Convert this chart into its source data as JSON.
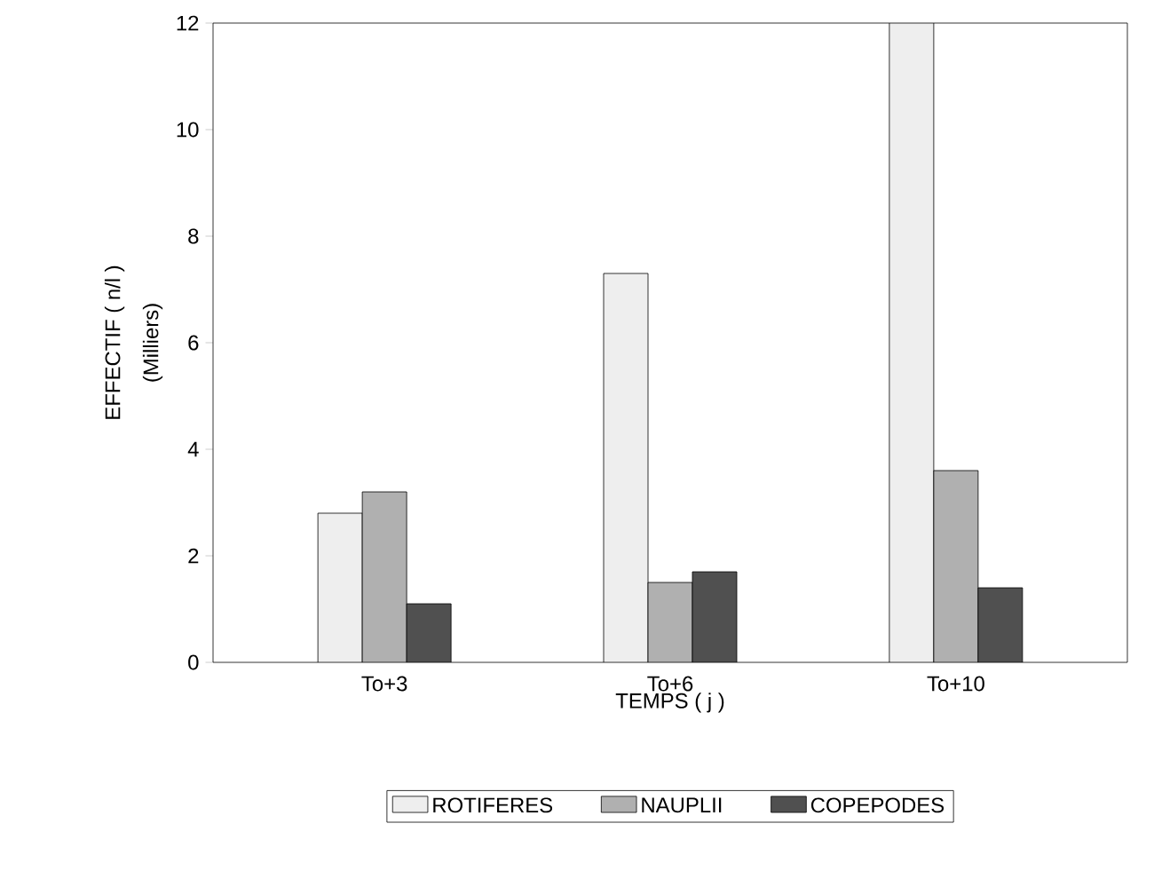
{
  "chart_data": {
    "type": "bar",
    "xlabel": "TEMPS ( j )",
    "ylabel": "EFFECTIF ( n/l )",
    "annotations": [
      "(Milliers)"
    ],
    "categories": [
      "To+3",
      "To+6",
      "To+10"
    ],
    "series": [
      {
        "name": "ROTIFERES",
        "color": "#eeeeee",
        "values": [
          2.8,
          7.3,
          12.0
        ]
      },
      {
        "name": "NAUPLII",
        "color": "#b0b0b0",
        "values": [
          3.2,
          1.5,
          3.6
        ]
      },
      {
        "name": "COPEPODES",
        "color": "#505050",
        "values": [
          1.1,
          1.7,
          1.4
        ]
      }
    ],
    "ylim": [
      0,
      12
    ],
    "yticks": [
      0,
      2,
      4,
      6,
      8,
      10,
      12
    ],
    "grid": false,
    "legend": "bottom"
  }
}
